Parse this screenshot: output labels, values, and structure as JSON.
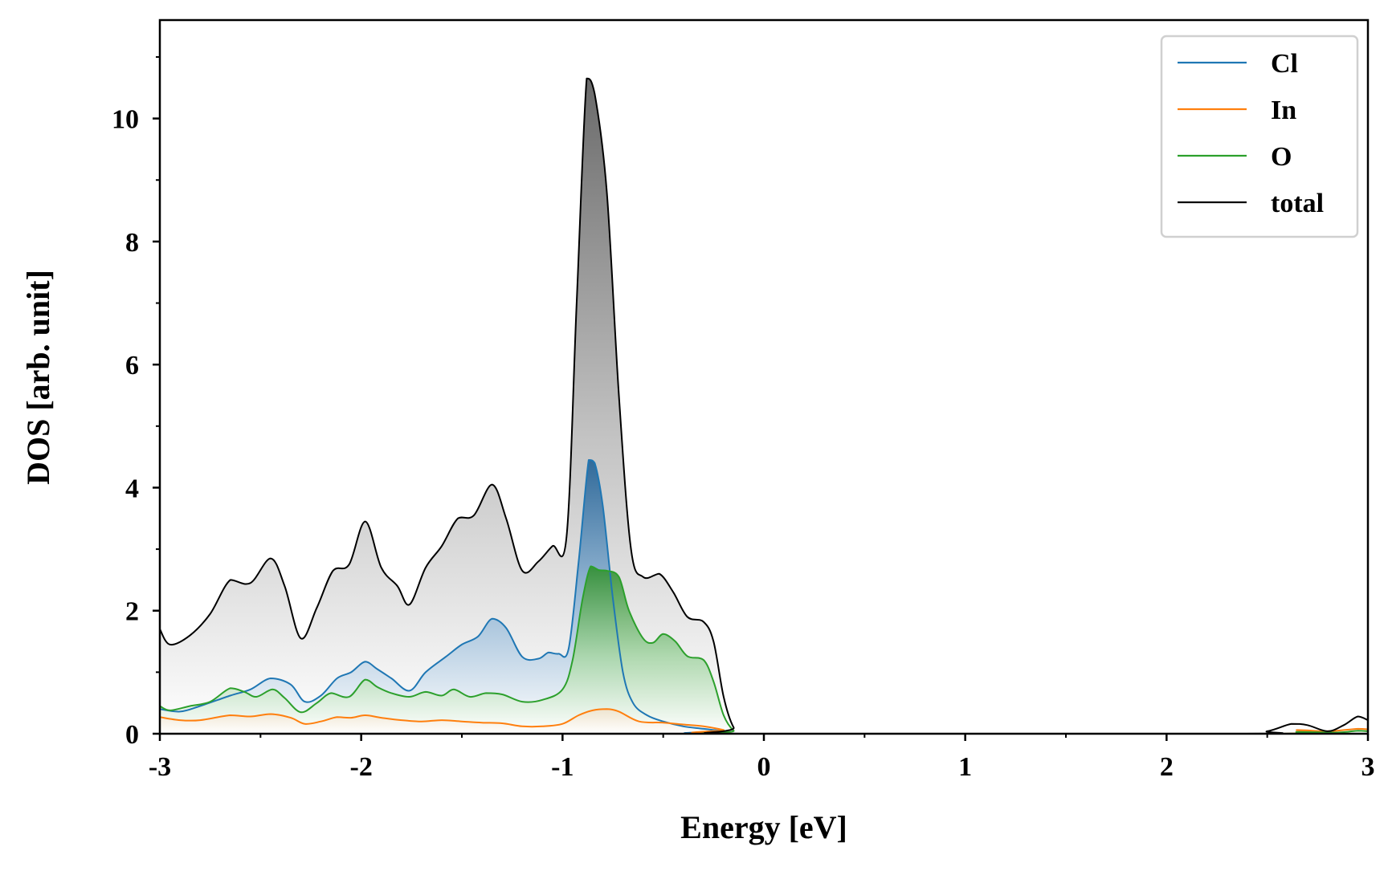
{
  "chart_data": {
    "type": "line",
    "title": "",
    "xlabel": "Energy [eV]",
    "ylabel": "DOS [arb. unit]",
    "xlim": [
      -3,
      3
    ],
    "ylim": [
      0,
      11.6
    ],
    "xticks": [
      -3,
      -2,
      -1,
      0,
      1,
      2,
      3
    ],
    "xtick_labels": [
      "-3",
      "-2",
      "-1",
      "0",
      "1",
      "2",
      "3"
    ],
    "yticks": [
      0,
      2,
      4,
      6,
      8,
      10
    ],
    "ytick_labels": [
      "0",
      "2",
      "4",
      "6",
      "8",
      "10"
    ],
    "grid": false,
    "legend_position": "top-right",
    "fill_under_curves": true,
    "series": [
      {
        "name": "Cl",
        "color": "#1f77b4",
        "points": [
          [
            -3.0,
            0.4
          ],
          [
            -2.9,
            0.36
          ],
          [
            -2.8,
            0.45
          ],
          [
            -2.65,
            0.62
          ],
          [
            -2.55,
            0.72
          ],
          [
            -2.45,
            0.9
          ],
          [
            -2.35,
            0.8
          ],
          [
            -2.28,
            0.52
          ],
          [
            -2.2,
            0.62
          ],
          [
            -2.12,
            0.9
          ],
          [
            -2.05,
            1.0
          ],
          [
            -1.98,
            1.17
          ],
          [
            -1.92,
            1.05
          ],
          [
            -1.85,
            0.9
          ],
          [
            -1.76,
            0.7
          ],
          [
            -1.68,
            1.0
          ],
          [
            -1.58,
            1.25
          ],
          [
            -1.5,
            1.45
          ],
          [
            -1.42,
            1.58
          ],
          [
            -1.35,
            1.87
          ],
          [
            -1.28,
            1.72
          ],
          [
            -1.2,
            1.25
          ],
          [
            -1.12,
            1.22
          ],
          [
            -1.07,
            1.32
          ],
          [
            -1.02,
            1.3
          ],
          [
            -0.97,
            1.38
          ],
          [
            -0.92,
            2.8
          ],
          [
            -0.87,
            4.45
          ],
          [
            -0.84,
            4.4
          ],
          [
            -0.8,
            3.7
          ],
          [
            -0.75,
            2.2
          ],
          [
            -0.7,
            1.0
          ],
          [
            -0.65,
            0.5
          ],
          [
            -0.58,
            0.3
          ],
          [
            -0.5,
            0.2
          ],
          [
            -0.4,
            0.12
          ],
          [
            -0.3,
            0.08
          ],
          [
            -0.2,
            0.04
          ],
          [
            -0.15,
            0.0
          ],
          [
            3.0,
            0.0
          ]
        ]
      },
      {
        "name": "In",
        "color": "#ff7f0e",
        "points": [
          [
            -3.0,
            0.27
          ],
          [
            -2.9,
            0.22
          ],
          [
            -2.8,
            0.22
          ],
          [
            -2.65,
            0.3
          ],
          [
            -2.55,
            0.28
          ],
          [
            -2.45,
            0.32
          ],
          [
            -2.35,
            0.26
          ],
          [
            -2.28,
            0.16
          ],
          [
            -2.2,
            0.2
          ],
          [
            -2.12,
            0.27
          ],
          [
            -2.05,
            0.26
          ],
          [
            -1.98,
            0.3
          ],
          [
            -1.9,
            0.26
          ],
          [
            -1.8,
            0.22
          ],
          [
            -1.7,
            0.2
          ],
          [
            -1.6,
            0.22
          ],
          [
            -1.5,
            0.2
          ],
          [
            -1.4,
            0.18
          ],
          [
            -1.3,
            0.17
          ],
          [
            -1.2,
            0.12
          ],
          [
            -1.1,
            0.12
          ],
          [
            -1.0,
            0.16
          ],
          [
            -0.92,
            0.3
          ],
          [
            -0.85,
            0.38
          ],
          [
            -0.78,
            0.4
          ],
          [
            -0.72,
            0.36
          ],
          [
            -0.62,
            0.2
          ],
          [
            -0.5,
            0.18
          ],
          [
            -0.4,
            0.15
          ],
          [
            -0.3,
            0.12
          ],
          [
            -0.2,
            0.06
          ],
          [
            -0.15,
            0.0
          ],
          [
            2.5,
            0.0
          ],
          [
            2.65,
            0.06
          ],
          [
            2.8,
            0.04
          ],
          [
            2.95,
            0.08
          ],
          [
            3.0,
            0.07
          ]
        ]
      },
      {
        "name": "O",
        "color": "#2ca02c",
        "points": [
          [
            -3.0,
            0.45
          ],
          [
            -2.95,
            0.38
          ],
          [
            -2.85,
            0.45
          ],
          [
            -2.75,
            0.52
          ],
          [
            -2.65,
            0.74
          ],
          [
            -2.58,
            0.68
          ],
          [
            -2.52,
            0.6
          ],
          [
            -2.44,
            0.72
          ],
          [
            -2.38,
            0.58
          ],
          [
            -2.3,
            0.35
          ],
          [
            -2.22,
            0.5
          ],
          [
            -2.15,
            0.66
          ],
          [
            -2.06,
            0.6
          ],
          [
            -1.98,
            0.88
          ],
          [
            -1.92,
            0.76
          ],
          [
            -1.85,
            0.66
          ],
          [
            -1.76,
            0.6
          ],
          [
            -1.68,
            0.68
          ],
          [
            -1.6,
            0.62
          ],
          [
            -1.54,
            0.72
          ],
          [
            -1.46,
            0.6
          ],
          [
            -1.38,
            0.66
          ],
          [
            -1.3,
            0.64
          ],
          [
            -1.2,
            0.52
          ],
          [
            -1.1,
            0.55
          ],
          [
            -1.0,
            0.72
          ],
          [
            -0.95,
            1.2
          ],
          [
            -0.9,
            2.2
          ],
          [
            -0.86,
            2.72
          ],
          [
            -0.82,
            2.66
          ],
          [
            -0.78,
            2.65
          ],
          [
            -0.72,
            2.55
          ],
          [
            -0.67,
            2.0
          ],
          [
            -0.6,
            1.55
          ],
          [
            -0.55,
            1.48
          ],
          [
            -0.5,
            1.62
          ],
          [
            -0.44,
            1.5
          ],
          [
            -0.38,
            1.26
          ],
          [
            -0.3,
            1.2
          ],
          [
            -0.25,
            0.85
          ],
          [
            -0.2,
            0.3
          ],
          [
            -0.15,
            0.05
          ],
          [
            -0.1,
            0.0
          ],
          [
            2.5,
            0.0
          ],
          [
            2.65,
            0.03
          ],
          [
            2.85,
            0.02
          ],
          [
            2.95,
            0.05
          ],
          [
            3.0,
            0.04
          ]
        ]
      },
      {
        "name": "total",
        "color": "#000000",
        "points": [
          [
            -3.0,
            1.7
          ],
          [
            -2.95,
            1.45
          ],
          [
            -2.85,
            1.6
          ],
          [
            -2.75,
            1.95
          ],
          [
            -2.65,
            2.5
          ],
          [
            -2.55,
            2.45
          ],
          [
            -2.45,
            2.85
          ],
          [
            -2.38,
            2.4
          ],
          [
            -2.3,
            1.55
          ],
          [
            -2.22,
            2.05
          ],
          [
            -2.14,
            2.65
          ],
          [
            -2.06,
            2.75
          ],
          [
            -1.98,
            3.45
          ],
          [
            -1.9,
            2.7
          ],
          [
            -1.82,
            2.4
          ],
          [
            -1.76,
            2.1
          ],
          [
            -1.68,
            2.7
          ],
          [
            -1.6,
            3.05
          ],
          [
            -1.52,
            3.5
          ],
          [
            -1.44,
            3.55
          ],
          [
            -1.35,
            4.05
          ],
          [
            -1.28,
            3.5
          ],
          [
            -1.2,
            2.65
          ],
          [
            -1.12,
            2.8
          ],
          [
            -1.05,
            3.05
          ],
          [
            -0.98,
            3.2
          ],
          [
            -0.93,
            7.0
          ],
          [
            -0.88,
            10.65
          ],
          [
            -0.84,
            10.4
          ],
          [
            -0.78,
            8.8
          ],
          [
            -0.72,
            5.5
          ],
          [
            -0.66,
            3.0
          ],
          [
            -0.6,
            2.55
          ],
          [
            -0.52,
            2.6
          ],
          [
            -0.45,
            2.3
          ],
          [
            -0.38,
            1.9
          ],
          [
            -0.3,
            1.82
          ],
          [
            -0.25,
            1.5
          ],
          [
            -0.2,
            0.6
          ],
          [
            -0.15,
            0.1
          ],
          [
            -0.1,
            0.0
          ],
          [
            2.35,
            0.0
          ],
          [
            2.5,
            0.04
          ],
          [
            2.62,
            0.16
          ],
          [
            2.7,
            0.14
          ],
          [
            2.8,
            0.04
          ],
          [
            2.88,
            0.14
          ],
          [
            2.95,
            0.28
          ],
          [
            3.0,
            0.22
          ]
        ]
      }
    ]
  }
}
